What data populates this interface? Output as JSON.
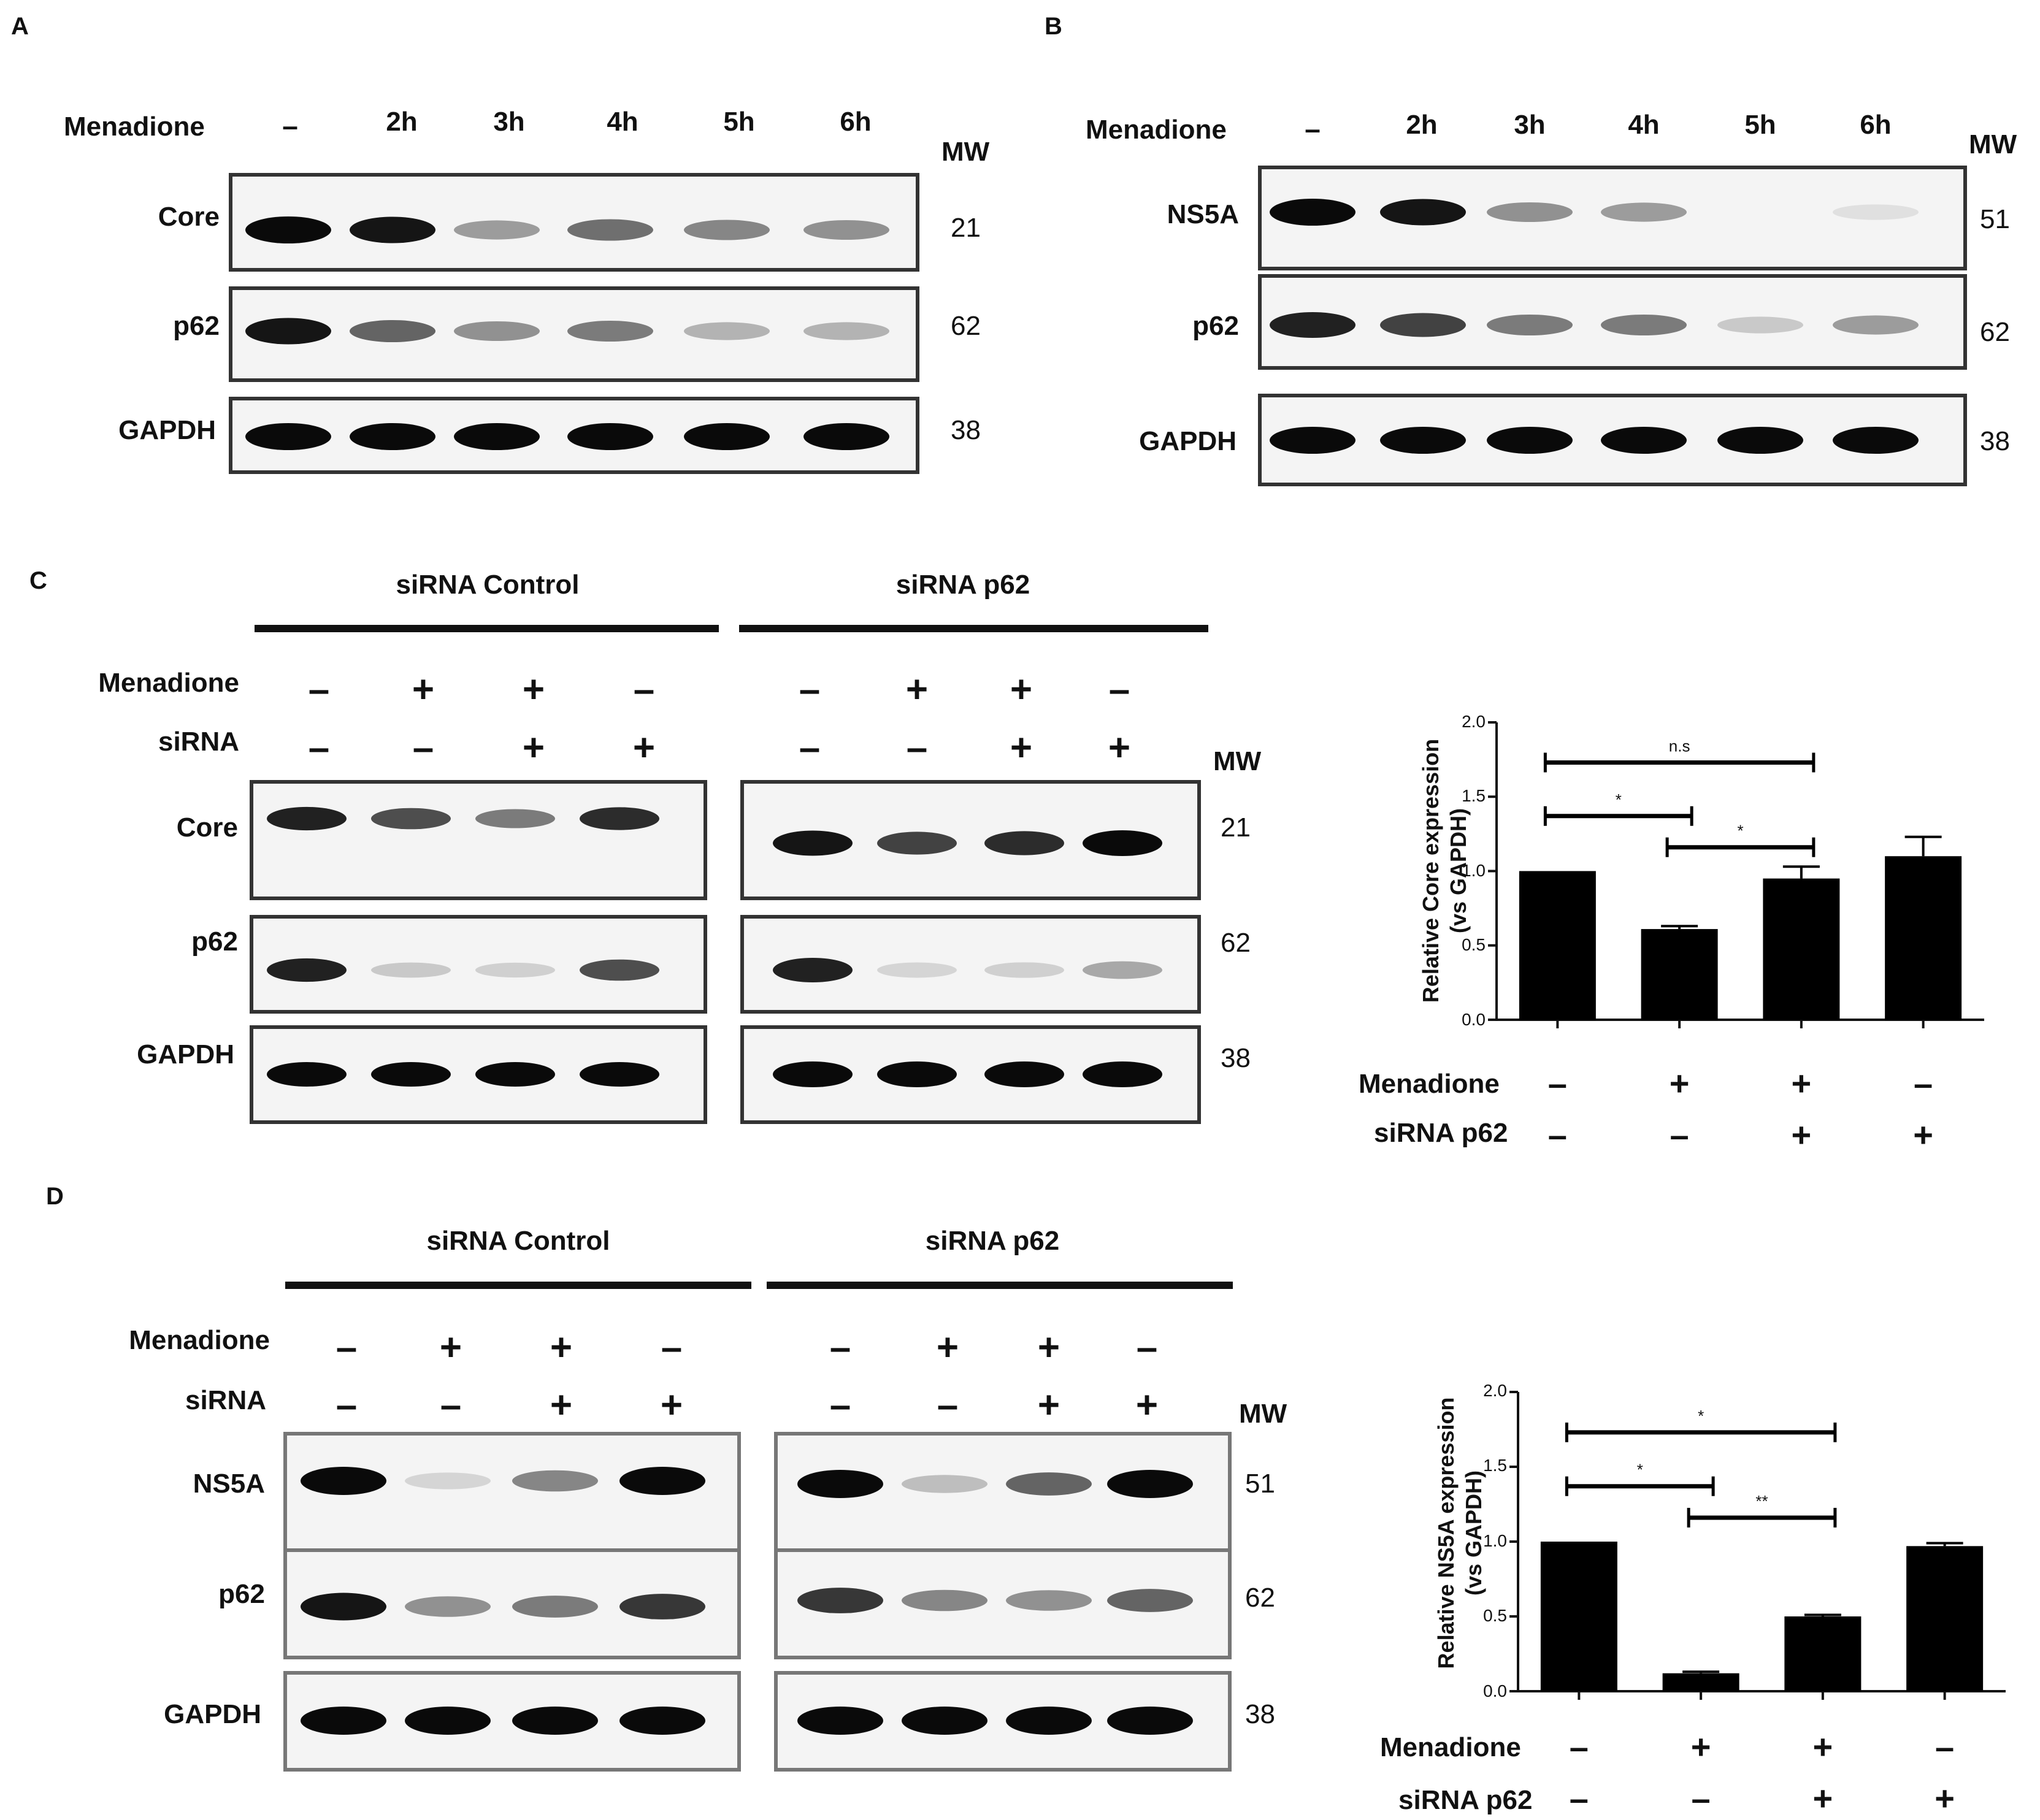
{
  "panels": {
    "A": {
      "letter": "A",
      "treatment_label": "Menadione",
      "lanes": [
        "–",
        "2h",
        "3h",
        "4h",
        "5h",
        "6h"
      ],
      "mw_label": "MW",
      "blots": [
        {
          "label": "Core",
          "mw": "21",
          "bands": [
            1.0,
            0.95,
            0.35,
            0.55,
            0.45,
            0.4
          ]
        },
        {
          "label": "p62",
          "mw": "62",
          "bands": [
            0.95,
            0.6,
            0.4,
            0.5,
            0.25,
            0.25
          ]
        },
        {
          "label": "GAPDH",
          "mw": "38",
          "bands": [
            1,
            1,
            1,
            1,
            1,
            1
          ]
        }
      ]
    },
    "B": {
      "letter": "B",
      "treatment_label": "Menadione",
      "lanes": [
        "–",
        "2h",
        "3h",
        "4h",
        "5h",
        "6h"
      ],
      "mw_label": "MW",
      "blots": [
        {
          "label": "NS5A",
          "mw": "51",
          "bands": [
            1.0,
            0.95,
            0.4,
            0.35,
            0.0,
            0.05
          ]
        },
        {
          "label": "p62",
          "mw": "62",
          "bands": [
            0.9,
            0.75,
            0.5,
            0.5,
            0.15,
            0.35
          ]
        },
        {
          "label": "GAPDH",
          "mw": "38",
          "bands": [
            1,
            1,
            1,
            1,
            1,
            1
          ]
        }
      ]
    },
    "C": {
      "letter": "C",
      "group_labels": [
        "siRNA Control",
        "siRNA p62"
      ],
      "row_labels": [
        "Menadione",
        "siRNA"
      ],
      "menadione_signs": [
        "–",
        "+",
        "+",
        "–"
      ],
      "sirna_signs": [
        "–",
        "–",
        "+",
        "+"
      ],
      "mw_label": "MW",
      "blots": [
        {
          "label": "Core",
          "mw": "21",
          "bands_left": [
            0.9,
            0.7,
            0.5,
            0.85
          ],
          "bands_right": [
            0.95,
            0.75,
            0.85,
            1.0
          ]
        },
        {
          "label": "p62",
          "mw": "62",
          "bands_left": [
            0.9,
            0.15,
            0.12,
            0.7
          ],
          "bands_right": [
            0.9,
            0.1,
            0.12,
            0.3
          ]
        },
        {
          "label": "GAPDH",
          "mw": "38",
          "bands_left": [
            1,
            1,
            1,
            1
          ],
          "bands_right": [
            1,
            1,
            1,
            1
          ]
        }
      ],
      "chart": {
        "ylabel": "Relative Core expression (vs GAPDH)",
        "ylabel_lines": [
          "Relative Core expression",
          "(vs GAPDH)"
        ],
        "ylim": [
          0,
          2.0
        ],
        "yticks": [
          "0.0",
          "0.5",
          "1.0",
          "1.5",
          "2.0"
        ],
        "row_labels": [
          "Menadione",
          "siRNA p62"
        ],
        "menadione_signs": [
          "–",
          "+",
          "+",
          "–"
        ],
        "sirna_signs": [
          "–",
          "–",
          "+",
          "+"
        ],
        "sig": [
          "n.s",
          "*",
          "*"
        ]
      }
    },
    "D": {
      "letter": "D",
      "group_labels": [
        "siRNA Control",
        "siRNA p62"
      ],
      "row_labels": [
        "Menadione",
        "siRNA"
      ],
      "menadione_signs": [
        "–",
        "+",
        "+",
        "–"
      ],
      "sirna_signs": [
        "–",
        "–",
        "+",
        "+"
      ],
      "mw_label": "MW",
      "blots": [
        {
          "label": "NS5A",
          "mw": "51",
          "bands_left": [
            1.0,
            0.1,
            0.45,
            1.0
          ],
          "bands_right": [
            1.0,
            0.2,
            0.6,
            1.0
          ]
        },
        {
          "label": "p62",
          "mw": "62",
          "bands_left": [
            0.95,
            0.4,
            0.5,
            0.8
          ],
          "bands_right": [
            0.8,
            0.45,
            0.4,
            0.6
          ]
        },
        {
          "label": "GAPDH",
          "mw": "38",
          "bands_left": [
            1,
            1,
            1,
            1
          ],
          "bands_right": [
            1,
            1,
            1,
            1
          ]
        }
      ],
      "chart": {
        "ylabel": "Relative NS5A expression (vs GAPDH)",
        "ylabel_lines": [
          "Relative NS5A expression",
          "(vs GAPDH)"
        ],
        "ylim": [
          0,
          2.0
        ],
        "yticks": [
          "0.0",
          "0.5",
          "1.0",
          "1.5",
          "2.0"
        ],
        "row_labels": [
          "Menadione",
          "siRNA p62"
        ],
        "menadione_signs": [
          "–",
          "+",
          "+",
          "–"
        ],
        "sirna_signs": [
          "–",
          "–",
          "+",
          "+"
        ],
        "sig": [
          "*",
          "*",
          "**"
        ]
      }
    }
  },
  "chart_data": [
    {
      "type": "bar",
      "categories": [
        "1",
        "2",
        "3",
        "4"
      ],
      "values": [
        1.0,
        0.61,
        0.95,
        1.1
      ],
      "errors": [
        0.0,
        0.02,
        0.08,
        0.13
      ],
      "ylabel": "Relative Core expression (vs GAPDH)",
      "ylim": [
        0,
        2.0
      ],
      "yticks": [
        0.0,
        0.5,
        1.0,
        1.5,
        2.0
      ],
      "significance": [
        {
          "from": 1,
          "to": 3,
          "label": "n.s",
          "y": 1.73
        },
        {
          "from": 1,
          "to": 2,
          "label": "*",
          "y": 1.37
        },
        {
          "from": 2,
          "to": 3,
          "label": "*",
          "y": 1.16
        }
      ]
    },
    {
      "type": "bar",
      "categories": [
        "1",
        "2",
        "3",
        "4"
      ],
      "values": [
        1.0,
        0.12,
        0.5,
        0.97
      ],
      "errors": [
        0.0,
        0.01,
        0.01,
        0.02
      ],
      "ylabel": "Relative NS5A expression (vs GAPDH)",
      "ylim": [
        0,
        2.0
      ],
      "yticks": [
        0.0,
        0.5,
        1.0,
        1.5,
        2.0
      ],
      "significance": [
        {
          "from": 1,
          "to": 3,
          "label": "*",
          "y": 1.73
        },
        {
          "from": 1,
          "to": 2,
          "label": "*",
          "y": 1.37
        },
        {
          "from": 2,
          "to": 3,
          "label": "**",
          "y": 1.16
        }
      ]
    }
  ]
}
